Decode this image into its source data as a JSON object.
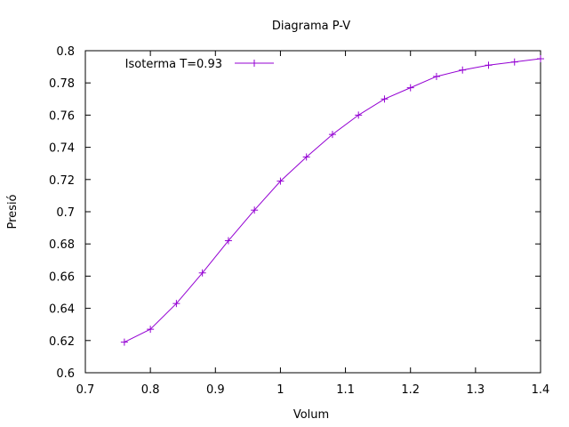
{
  "chart_data": {
    "type": "line",
    "title": "Diagrama P-V",
    "xlabel": "Volum",
    "ylabel": "Presió",
    "xlim": [
      0.7,
      1.4
    ],
    "ylim": [
      0.6,
      0.8
    ],
    "xticks": [
      "0.7",
      "0.8",
      "0.9",
      "1",
      "1.1",
      "1.2",
      "1.3",
      "1.4"
    ],
    "yticks": [
      "0.6",
      "0.62",
      "0.64",
      "0.66",
      "0.68",
      "0.7",
      "0.72",
      "0.74",
      "0.76",
      "0.78",
      "0.8"
    ],
    "grid": false,
    "legend_position": "top-left",
    "series": [
      {
        "name": "Isoterma T=0.93",
        "color": "#9400d3",
        "marker": "plus",
        "x": [
          0.76,
          0.8,
          0.84,
          0.88,
          0.92,
          0.96,
          1.0,
          1.04,
          1.08,
          1.12,
          1.16,
          1.2,
          1.24,
          1.28,
          1.32,
          1.36,
          1.4
        ],
        "y": [
          0.619,
          0.627,
          0.643,
          0.662,
          0.682,
          0.701,
          0.719,
          0.734,
          0.748,
          0.76,
          0.77,
          0.777,
          0.784,
          0.788,
          0.791,
          0.793,
          0.795
        ]
      }
    ]
  }
}
